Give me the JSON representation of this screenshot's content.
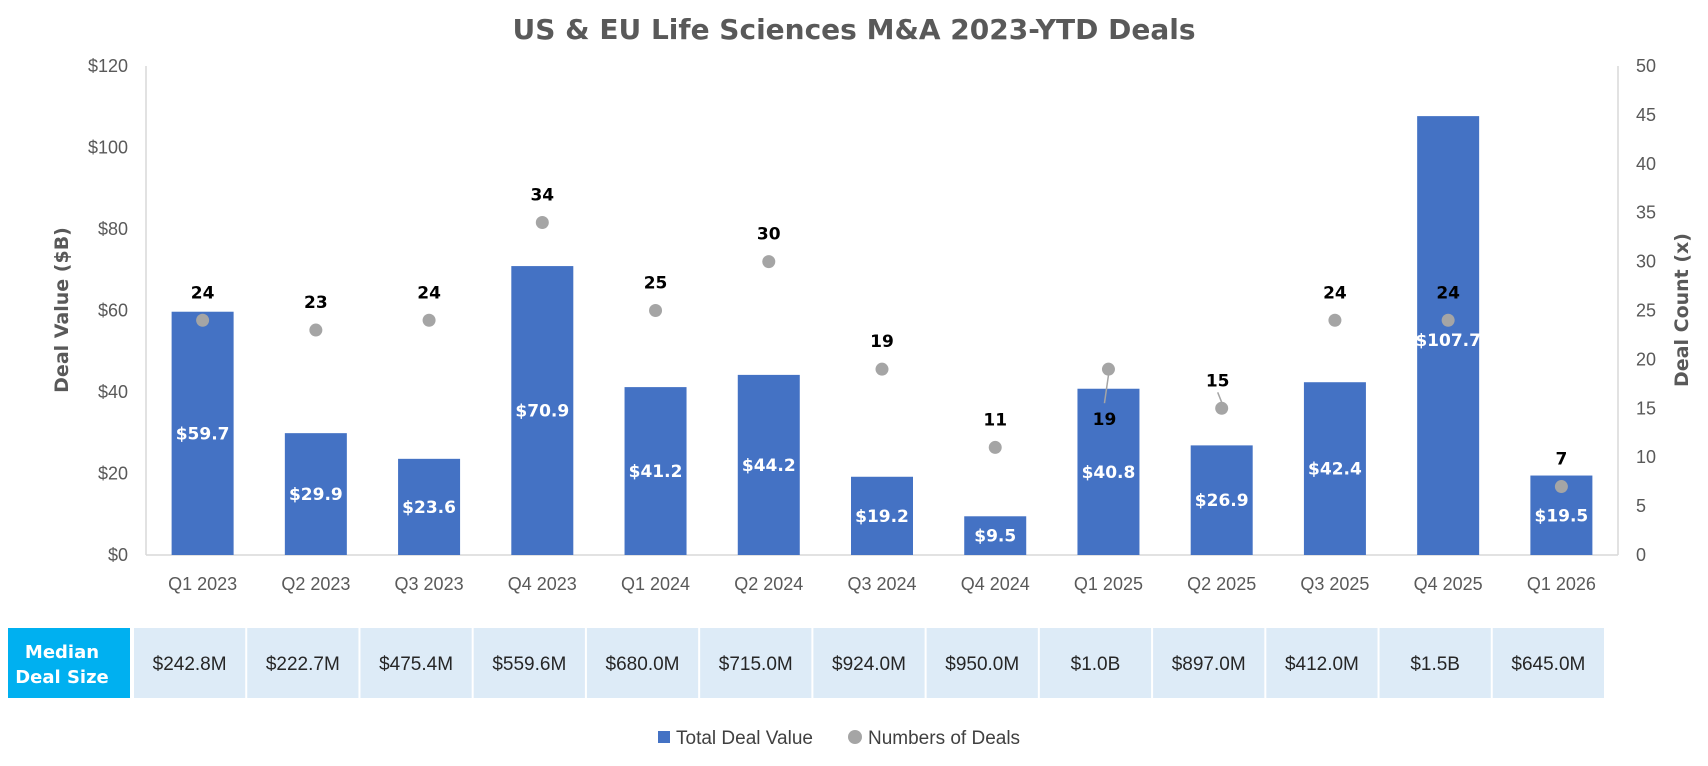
{
  "chart_data": {
    "type": "bar",
    "title": "US & EU Life Sciences M&A 2023-YTD Deals",
    "categories": [
      "Q1 2023",
      "Q2 2023",
      "Q3 2023",
      "Q4 2023",
      "Q1 2024",
      "Q2 2024",
      "Q3 2024",
      "Q4 2024",
      "Q1 2025",
      "Q2 2025",
      "Q3 2025",
      "Q4 2025",
      "Q1 2026"
    ],
    "series": [
      {
        "name": "Total Deal Value",
        "axis": "left",
        "color": "#4472C4",
        "values": [
          59.7,
          29.9,
          23.6,
          70.9,
          41.2,
          44.2,
          19.2,
          9.5,
          40.8,
          26.9,
          42.4,
          107.7,
          19.5
        ],
        "labels": [
          "$59.7",
          "$29.9",
          "$23.6",
          "$70.9",
          "$41.2",
          "$44.2",
          "$19.2",
          "$9.5",
          "$40.8",
          "$26.9",
          "$42.4",
          "$107.7",
          "$19.5"
        ]
      },
      {
        "name": "Numbers of Deals",
        "axis": "right",
        "type": "scatter",
        "color": "#A5A5A5",
        "values": [
          24,
          23,
          24,
          34,
          25,
          30,
          19,
          11,
          19,
          15,
          24,
          24,
          7
        ],
        "labels": [
          "24",
          "23",
          "24",
          "34",
          "25",
          "30",
          "19",
          "11",
          "19",
          "15",
          "24",
          "24",
          "7"
        ]
      }
    ],
    "ylabel": "Deal Value ($B)",
    "ylim": [
      0,
      120
    ],
    "yticks": [
      "$0",
      "$20",
      "$40",
      "$60",
      "$80",
      "$100",
      "$120"
    ],
    "y2label": "Deal Count (x)",
    "y2lim": [
      0,
      50
    ],
    "y2ticks": [
      "0",
      "5",
      "10",
      "15",
      "20",
      "25",
      "30",
      "35",
      "40",
      "45",
      "50"
    ],
    "legend": [
      "Total Deal Value",
      "Numbers of Deals"
    ],
    "legend_position": "bottom",
    "median_table": {
      "header": [
        "Median",
        "Deal Size"
      ],
      "values": [
        "$242.8M",
        "$222.7M",
        "$475.4M",
        "$559.6M",
        "$680.0M",
        "$715.0M",
        "$924.0M",
        "$950.0M",
        "$1.0B",
        "$897.0M",
        "$412.0M",
        "$1.5B",
        "$645.0M"
      ]
    }
  },
  "colors": {
    "bar": "#4472C4",
    "dot": "#A5A5A5",
    "table_header": "#00B0F0",
    "table_cell": "#DDEBF7"
  }
}
